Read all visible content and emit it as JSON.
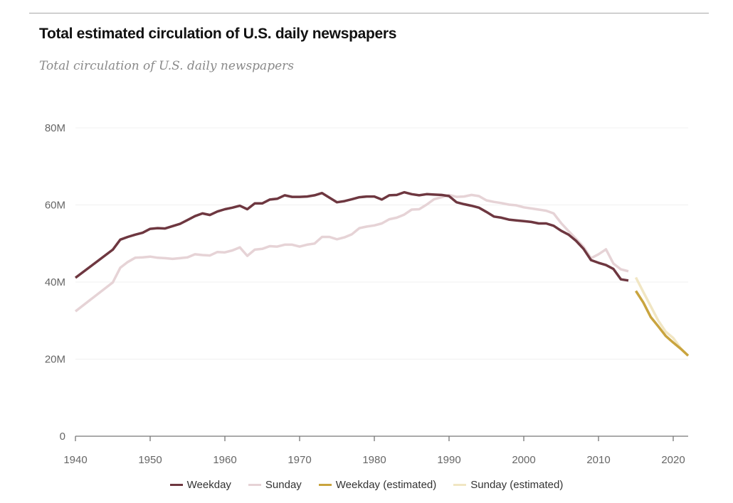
{
  "header": {
    "title": "Total estimated circulation of U.S. daily newspapers",
    "subtitle": "Total circulation of U.S. daily newspapers"
  },
  "chart_data": {
    "type": "line",
    "title": "Total estimated circulation of U.S. daily newspapers",
    "subtitle": "Total circulation of U.S. daily newspapers",
    "xlabel": "",
    "ylabel": "",
    "xlim": [
      1940,
      2022
    ],
    "ylim": [
      0,
      80
    ],
    "y_unit": "millions",
    "grid": true,
    "legend_position": "bottom",
    "y_ticks": [
      {
        "value": 0,
        "label": "0"
      },
      {
        "value": 20,
        "label": "20M"
      },
      {
        "value": 40,
        "label": "40M"
      },
      {
        "value": 60,
        "label": "60M"
      },
      {
        "value": 80,
        "label": "80M"
      }
    ],
    "x_ticks": [
      {
        "value": 1940,
        "label": "1940"
      },
      {
        "value": 1950,
        "label": "1950"
      },
      {
        "value": 1960,
        "label": "1960"
      },
      {
        "value": 1970,
        "label": "1970"
      },
      {
        "value": 1980,
        "label": "1980"
      },
      {
        "value": 1990,
        "label": "1990"
      },
      {
        "value": 2000,
        "label": "2000"
      },
      {
        "value": 2010,
        "label": "2010"
      },
      {
        "value": 2020,
        "label": "2020"
      }
    ],
    "series": [
      {
        "name": "Weekday",
        "color": "#6e3740",
        "x": [
          1940,
          1945,
          1946,
          1947,
          1948,
          1949,
          1950,
          1951,
          1952,
          1953,
          1954,
          1955,
          1956,
          1957,
          1958,
          1959,
          1960,
          1961,
          1962,
          1963,
          1964,
          1965,
          1966,
          1967,
          1968,
          1969,
          1970,
          1971,
          1972,
          1973,
          1974,
          1975,
          1976,
          1977,
          1978,
          1979,
          1980,
          1981,
          1982,
          1983,
          1984,
          1985,
          1986,
          1987,
          1988,
          1989,
          1990,
          1991,
          1992,
          1993,
          1994,
          1995,
          1996,
          1997,
          1998,
          1999,
          2000,
          2001,
          2002,
          2003,
          2004,
          2005,
          2006,
          2007,
          2008,
          2009,
          2010,
          2011,
          2012,
          2013,
          2014
        ],
        "values": [
          41.1,
          48.4,
          51.0,
          51.7,
          52.3,
          52.8,
          53.8,
          54.0,
          53.9,
          54.5,
          55.1,
          56.1,
          57.1,
          57.8,
          57.4,
          58.3,
          58.9,
          59.3,
          59.8,
          58.9,
          60.4,
          60.4,
          61.4,
          61.6,
          62.5,
          62.1,
          62.1,
          62.2,
          62.5,
          63.1,
          61.9,
          60.7,
          61.0,
          61.5,
          62.0,
          62.2,
          62.2,
          61.4,
          62.5,
          62.6,
          63.3,
          62.8,
          62.5,
          62.8,
          62.7,
          62.6,
          62.3,
          60.7,
          60.2,
          59.8,
          59.3,
          58.2,
          57.0,
          56.7,
          56.2,
          56.0,
          55.8,
          55.6,
          55.2,
          55.2,
          54.6,
          53.3,
          52.3,
          50.7,
          48.6,
          45.7,
          45.0,
          44.4,
          43.4,
          40.7,
          40.4
        ]
      },
      {
        "name": "Sunday",
        "color": "#e6d3d6",
        "x": [
          1940,
          1945,
          1946,
          1947,
          1948,
          1949,
          1950,
          1951,
          1952,
          1953,
          1954,
          1955,
          1956,
          1957,
          1958,
          1959,
          1960,
          1961,
          1962,
          1963,
          1964,
          1965,
          1966,
          1967,
          1968,
          1969,
          1970,
          1971,
          1972,
          1973,
          1974,
          1975,
          1976,
          1977,
          1978,
          1979,
          1980,
          1981,
          1982,
          1983,
          1984,
          1985,
          1986,
          1987,
          1988,
          1989,
          1990,
          1991,
          1992,
          1993,
          1994,
          1995,
          1996,
          1997,
          1998,
          1999,
          2000,
          2001,
          2002,
          2003,
          2004,
          2005,
          2006,
          2007,
          2008,
          2009,
          2010,
          2011,
          2012,
          2013,
          2014
        ],
        "values": [
          32.4,
          39.9,
          43.7,
          45.2,
          46.3,
          46.4,
          46.6,
          46.3,
          46.2,
          46.0,
          46.2,
          46.4,
          47.2,
          47.0,
          46.9,
          47.8,
          47.7,
          48.2,
          49.0,
          46.8,
          48.4,
          48.6,
          49.3,
          49.2,
          49.7,
          49.7,
          49.2,
          49.7,
          50.0,
          51.7,
          51.7,
          51.1,
          51.6,
          52.4,
          54.0,
          54.4,
          54.7,
          55.2,
          56.3,
          56.7,
          57.5,
          58.8,
          58.9,
          60.1,
          61.5,
          62.0,
          62.6,
          62.1,
          62.2,
          62.6,
          62.3,
          61.2,
          60.8,
          60.5,
          60.1,
          59.9,
          59.4,
          59.1,
          58.8,
          58.5,
          57.8,
          55.3,
          53.2,
          51.2,
          49.1,
          46.2,
          47.2,
          48.5,
          44.8,
          43.3,
          42.8
        ]
      },
      {
        "name": "Weekday (estimated)",
        "color": "#c9a43e",
        "x": [
          2015,
          2016,
          2017,
          2018,
          2019,
          2020,
          2021,
          2022
        ],
        "values": [
          37.7,
          34.7,
          30.9,
          28.5,
          26.0,
          24.3,
          22.7,
          20.9
        ]
      },
      {
        "name": "Sunday (estimated)",
        "color": "#f1e6c3",
        "x": [
          2015,
          2016,
          2017,
          2018,
          2019,
          2020,
          2021,
          2022
        ],
        "values": [
          41.2,
          37.4,
          33.7,
          30.0,
          27.1,
          25.5,
          22.8,
          20.9
        ]
      }
    ]
  },
  "legend": [
    {
      "label": "Weekday",
      "color": "#6e3740"
    },
    {
      "label": "Sunday",
      "color": "#e6d3d6"
    },
    {
      "label": "Weekday (estimated)",
      "color": "#c9a43e"
    },
    {
      "label": "Sunday (estimated)",
      "color": "#f1e6c3"
    }
  ]
}
